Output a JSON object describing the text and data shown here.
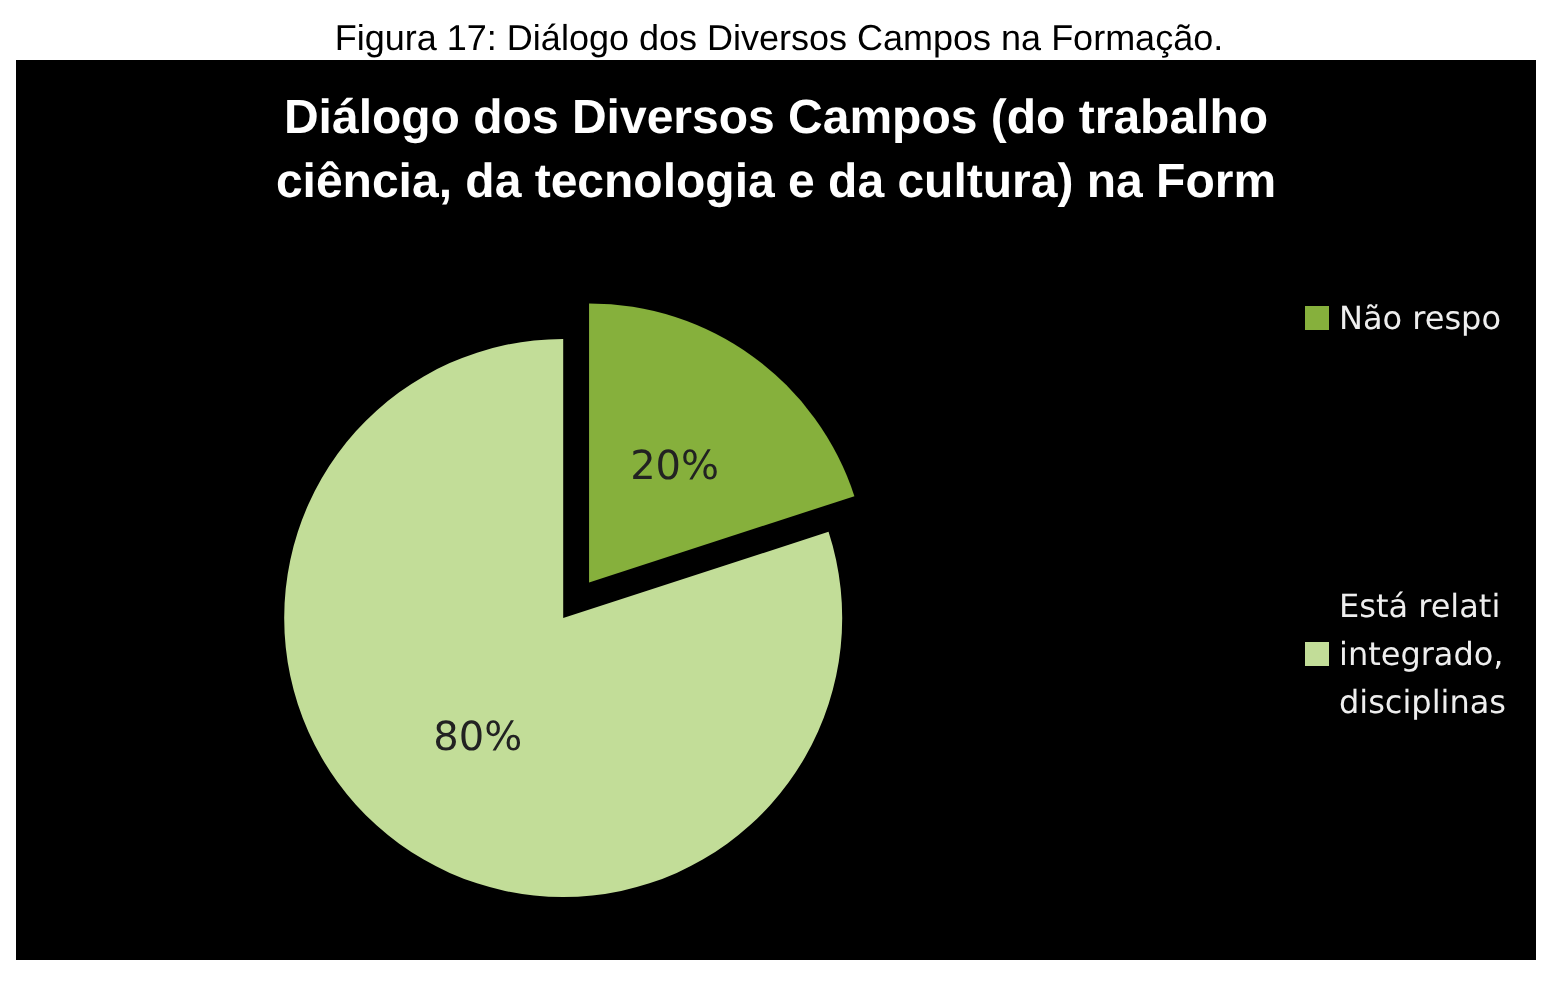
{
  "chart_data": {
    "type": "pie",
    "title": "Diálogo dos Diversos Campos (do trabalho\nciência, da tecnologia e da cultura) na Form",
    "annotations": [
      "Figura 17: Diálogo dos Diversos Campos na Formação."
    ],
    "categories": [
      "Não respo",
      "Está relati\nintegrado,\ndisciplinas"
    ],
    "values": [
      20,
      80
    ],
    "colors": [
      "#86b03c",
      "#c2dd98"
    ],
    "value_labels": [
      "20%",
      "80%"
    ],
    "legend": "right"
  }
}
